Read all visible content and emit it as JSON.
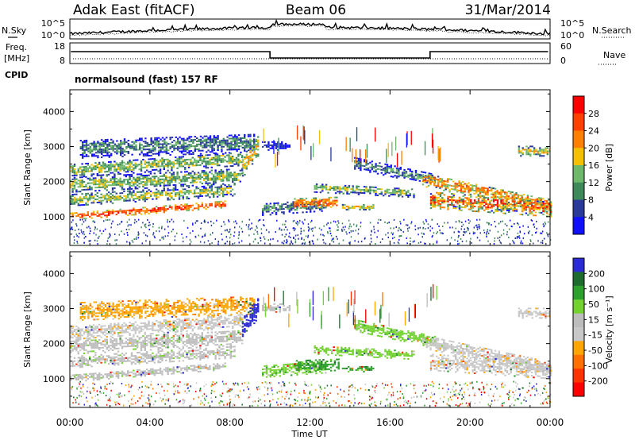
{
  "header": {
    "station": "Adak East (fitACF)",
    "beam": "Beam 06",
    "date": "31/Mar/2014"
  },
  "noise_panel": {
    "left_label": "N.Sky",
    "right_label": "N.Search",
    "left_ticks": [
      "10^5",
      "10^0"
    ],
    "right_ticks": [
      "10^5",
      "10^0"
    ]
  },
  "freq_panel": {
    "left_label_line1": "Freq.",
    "left_label_line2": "[MHz]",
    "right_label": "Nave",
    "left_ticks": [
      "18",
      "8"
    ],
    "right_ticks": [
      "60",
      "0"
    ],
    "cpid_label": "CPID"
  },
  "cpid_text": "normalsound (fast) 157 RF",
  "colors": {
    "power": [
      "#1010ff",
      "#2a3a9a",
      "#3e8a5a",
      "#6db86a",
      "#f5c000",
      "#ff8000",
      "#ff4000",
      "#ff0000"
    ],
    "velocity": [
      "#2b2bd5",
      "#1e6b2e",
      "#2ea02e",
      "#73d230",
      "#bdbdbd",
      "#c8c8c8",
      "#ffa500",
      "#ff7000",
      "#ff3300",
      "#ff0000"
    ]
  },
  "chart_data": [
    {
      "type": "heatmap",
      "ylabel": "Slant Range [km]",
      "x_range": [
        "00:00",
        "24:00"
      ],
      "ylim": [
        180,
        4620
      ],
      "yticks": [
        1000,
        2000,
        3000,
        4000
      ],
      "colorbar": {
        "label": "Power [dB]",
        "ticks": [
          "28",
          "24",
          "20",
          "16",
          "12",
          "8",
          "4"
        ]
      },
      "pattern": "power"
    },
    {
      "type": "heatmap",
      "ylabel": "Slant Range [km]",
      "xlabel": "Time UT",
      "x_range": [
        "00:00",
        "24:00"
      ],
      "ylim": [
        180,
        4620
      ],
      "yticks": [
        1000,
        2000,
        3000,
        4000
      ],
      "xticks": [
        "00:00",
        "04:00",
        "08:00",
        "12:00",
        "16:00",
        "20:00",
        "00:00"
      ],
      "colorbar": {
        "label": "Velocity [m s⁻¹]",
        "ticks": [
          "200",
          "100",
          "50",
          "15",
          "-15",
          "-50",
          "-100",
          "-200"
        ]
      },
      "pattern": "velocity"
    }
  ]
}
